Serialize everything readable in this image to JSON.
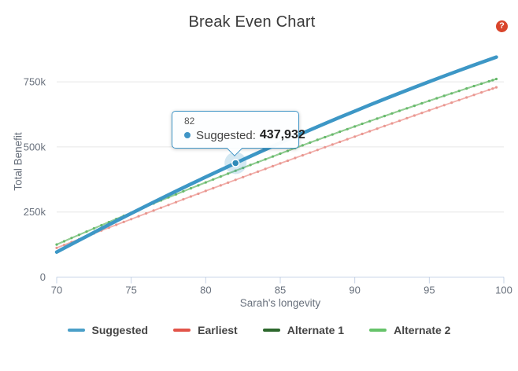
{
  "title": "Break Even Chart",
  "help": {
    "glyph": "?",
    "color": "#d9452c"
  },
  "tooltip": {
    "age": "82",
    "series": "Suggested:",
    "value": "437,932",
    "bullet_color": "#4095c6",
    "border_color": "#4095c6"
  },
  "legend": {
    "position": "bottom",
    "items": [
      {
        "label": "Suggested",
        "color": "#4a9fc8"
      },
      {
        "label": "Earliest",
        "color": "#e25449"
      },
      {
        "label": "Alternate 1",
        "color": "#2d682d"
      },
      {
        "label": "Alternate 2",
        "color": "#66c36a"
      }
    ]
  },
  "chart_data": {
    "type": "line",
    "title": "Break Even Chart",
    "xlabel": "Sarah's longevity",
    "ylabel": "Total Benefit",
    "xlim": [
      70,
      100
    ],
    "ylim": [
      0,
      900000
    ],
    "grid": "horizontal",
    "legend_position": "bottom",
    "x_ticks": [
      70,
      75,
      80,
      85,
      90,
      95,
      100
    ],
    "y_ticks": [
      {
        "value": 0,
        "label": "0"
      },
      {
        "value": 250000,
        "label": "250k"
      },
      {
        "value": 500000,
        "label": "500k"
      },
      {
        "value": 750000,
        "label": "750k"
      }
    ],
    "ages": [
      70,
      71,
      72,
      73,
      74,
      75,
      76,
      77,
      78,
      79,
      80,
      81,
      82,
      83,
      84,
      85,
      86,
      87,
      88,
      89,
      90,
      91,
      92,
      93,
      94,
      95,
      96,
      97,
      98,
      99,
      99.5
    ],
    "series": [
      {
        "name": "Alternate 1",
        "color": "#2d682d",
        "width": 1.8,
        "markers": false,
        "note": "coincides with Alternate 2 and is hidden beneath it",
        "values": [
          125000,
          149920,
          174610,
          199060,
          223270,
          247250,
          270990,
          294500,
          317770,
          340800,
          363600,
          386160,
          408490,
          430580,
          452430,
          474050,
          495430,
          516580,
          537490,
          558160,
          578600,
          598800,
          618770,
          638500,
          657990,
          677250,
          696270,
          715060,
          733610,
          751920,
          761010
        ]
      },
      {
        "name": "Alternate 2",
        "color": "#93d193",
        "marker_color": "#67b96b",
        "width": 1.8,
        "markers": true,
        "values": [
          125000,
          149920,
          174610,
          199060,
          223270,
          247250,
          270990,
          294500,
          317770,
          340800,
          363600,
          386160,
          408490,
          430580,
          452430,
          474050,
          495430,
          516580,
          537490,
          558160,
          578600,
          598800,
          618770,
          638500,
          657990,
          677250,
          696270,
          715060,
          733610,
          751920,
          761010
        ]
      },
      {
        "name": "Earliest",
        "color": "#f2aeaa",
        "marker_color": "#e89790",
        "width": 1.8,
        "markers": true,
        "values": [
          112000,
          134330,
          156550,
          178680,
          200710,
          222640,
          244460,
          266190,
          287830,
          309360,
          330790,
          352120,
          373360,
          394490,
          415530,
          436470,
          457300,
          478040,
          498680,
          519220,
          539660,
          560000,
          580240,
          600390,
          620430,
          640380,
          660220,
          679970,
          699610,
          719160,
          728910
        ]
      },
      {
        "name": "Suggested",
        "color": "#3d97c6",
        "width": 4.5,
        "markers": false,
        "values": [
          96000,
          126440,
          156530,
          186260,
          215640,
          244670,
          273340,
          301650,
          329610,
          357220,
          384470,
          411370,
          437932,
          464100,
          489930,
          515410,
          540530,
          565300,
          589720,
          613770,
          637480,
          660830,
          683830,
          706470,
          728760,
          750690,
          772270,
          793490,
          814360,
          834870,
          844970
        ]
      }
    ],
    "highlight_point": {
      "series": "Suggested",
      "age": 82,
      "value": 437932
    }
  }
}
